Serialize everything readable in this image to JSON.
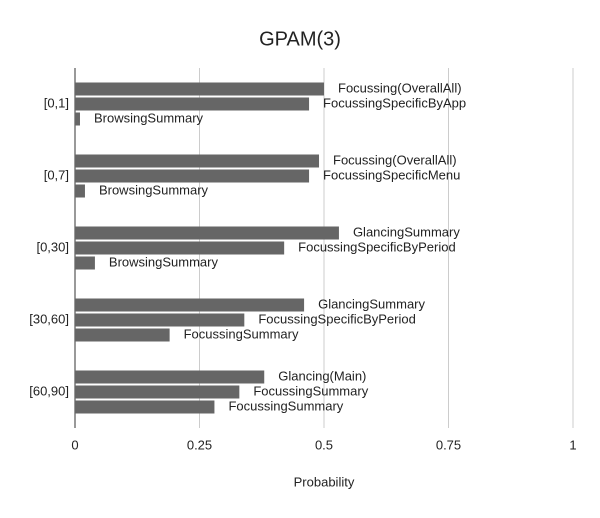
{
  "chart_data": {
    "type": "bar",
    "orientation": "horizontal",
    "title": "GPAM(3)",
    "x_label": "Probability",
    "color": "#666666",
    "grid": true,
    "xlim": [
      0,
      1
    ],
    "xticks": [
      0,
      0.25,
      0.5,
      0.75,
      1
    ],
    "groups": [
      {
        "category": "[0,1]",
        "bars": [
          {
            "label": "Focussing(OverallAll)",
            "value": 0.5
          },
          {
            "label": "FocussingSpecificByApp",
            "value": 0.47
          },
          {
            "label": "BrowsingSummary",
            "value": 0.01
          }
        ]
      },
      {
        "category": "[0,7]",
        "bars": [
          {
            "label": "Focussing(OverallAll)",
            "value": 0.49
          },
          {
            "label": "FocussingSpecificMenu",
            "value": 0.47
          },
          {
            "label": "BrowsingSummary",
            "value": 0.02
          }
        ]
      },
      {
        "category": "[0,30]",
        "bars": [
          {
            "label": "GlancingSummary",
            "value": 0.53
          },
          {
            "label": "FocussingSpecificByPeriod",
            "value": 0.42
          },
          {
            "label": "BrowsingSummary",
            "value": 0.04
          }
        ]
      },
      {
        "category": "[30,60]",
        "bars": [
          {
            "label": "GlancingSummary",
            "value": 0.46
          },
          {
            "label": "FocussingSpecificByPeriod",
            "value": 0.34
          },
          {
            "label": "FocussingSummary",
            "value": 0.19
          }
        ]
      },
      {
        "category": "[60,90]",
        "bars": [
          {
            "label": "Glancing(Main)",
            "value": 0.38
          },
          {
            "label": "FocussingSummary",
            "value": 0.33
          },
          {
            "label": "FocussingSummary",
            "value": 0.28
          }
        ]
      }
    ]
  }
}
